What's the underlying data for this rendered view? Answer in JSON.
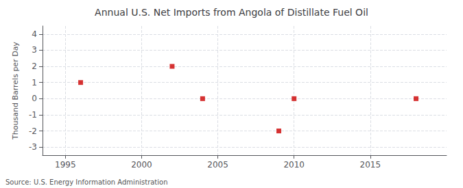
{
  "chart_data": {
    "type": "scatter",
    "title": "Annual U.S. Net Imports from Angola of Distillate Fuel Oil",
    "ylabel": "Thousand Barrels per Day",
    "annotation": "Source: U.S. Energy Information Administration",
    "x": [
      1996,
      2002,
      2004,
      2009,
      2010,
      2018
    ],
    "values": [
      1,
      2,
      0,
      -2,
      0,
      0
    ],
    "color": "#cc0000",
    "marker": "square",
    "xlim": [
      1993.5,
      2020
    ],
    "xticks": [
      1995,
      2000,
      2005,
      2010,
      2015
    ],
    "ylim": [
      -3.5,
      4.5
    ],
    "yticks": [
      -3,
      -2,
      -1,
      0,
      1,
      2,
      3,
      4
    ],
    "grid": true
  }
}
